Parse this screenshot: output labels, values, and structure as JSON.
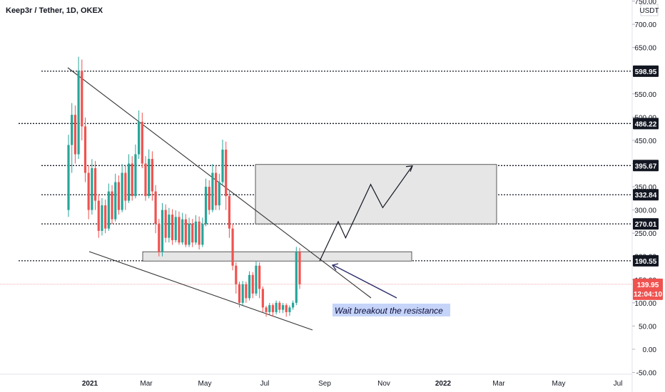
{
  "chart_data": {
    "type": "candlestick",
    "title": "Keep3r / Tether, 1D, OKEX",
    "currency": "USDT",
    "y_ticks": [
      -50,
      0,
      50,
      100,
      150,
      200,
      250,
      300,
      350,
      400,
      450,
      500,
      550,
      600,
      650,
      700,
      750
    ],
    "x_ticks": [
      "2021",
      "Mar",
      "May",
      "Jul",
      "Sep",
      "Nov",
      "2022",
      "Mar",
      "May",
      "Jul"
    ],
    "horizontal_levels": [
      598.95,
      486.22,
      395.67,
      332.84,
      270.01,
      190.55
    ],
    "current_price": {
      "value": "139.95",
      "time": "12:04:10"
    },
    "annotation": "Wait breakout the resistance",
    "colors": {
      "up": "#26a69a",
      "down": "#ef5350",
      "tag_bg": "#131722",
      "current_bg": "#ef5350",
      "note_bg": "#c5d4f8",
      "box_fill": "#e6e6e6"
    },
    "support_zone": {
      "low": 190,
      "high": 210
    },
    "target_zone": {
      "low": 270,
      "high": 398
    },
    "projection_path": [
      [
        0,
        190
      ],
      [
        0.2,
        275
      ],
      [
        0.28,
        240
      ],
      [
        0.55,
        355
      ],
      [
        0.68,
        305
      ],
      [
        1,
        395
      ]
    ],
    "candles": [
      [
        0,
        300,
        440,
        285
      ],
      [
        0,
        440,
        505,
        380
      ],
      [
        1,
        505,
        420,
        400
      ],
      [
        0,
        420,
        600,
        410
      ],
      [
        1,
        600,
        480,
        450
      ],
      [
        1,
        480,
        380,
        360
      ],
      [
        1,
        380,
        300,
        280
      ],
      [
        0,
        300,
        390,
        290
      ],
      [
        1,
        390,
        320,
        300
      ],
      [
        1,
        320,
        255,
        240
      ],
      [
        0,
        255,
        310,
        245
      ],
      [
        1,
        310,
        260,
        250
      ],
      [
        0,
        260,
        340,
        255
      ],
      [
        1,
        340,
        280,
        270
      ],
      [
        0,
        280,
        360,
        275
      ],
      [
        1,
        360,
        300,
        290
      ],
      [
        0,
        300,
        380,
        295
      ],
      [
        1,
        380,
        320,
        300
      ],
      [
        0,
        320,
        400,
        315
      ],
      [
        1,
        400,
        330,
        320
      ],
      [
        0,
        330,
        420,
        325
      ],
      [
        0,
        420,
        490,
        410
      ],
      [
        1,
        490,
        400,
        390
      ],
      [
        1,
        400,
        330,
        320
      ],
      [
        0,
        330,
        410,
        325
      ],
      [
        1,
        410,
        340,
        320
      ],
      [
        1,
        340,
        270,
        250
      ],
      [
        1,
        270,
        210,
        200
      ],
      [
        0,
        210,
        300,
        200
      ],
      [
        1,
        300,
        240,
        230
      ],
      [
        0,
        240,
        290,
        230
      ],
      [
        1,
        290,
        235,
        225
      ],
      [
        0,
        235,
        285,
        230
      ],
      [
        1,
        285,
        230,
        225
      ],
      [
        0,
        230,
        280,
        225
      ],
      [
        1,
        280,
        225,
        220
      ],
      [
        0,
        225,
        270,
        220
      ],
      [
        1,
        270,
        230,
        220
      ],
      [
        0,
        230,
        275,
        225
      ],
      [
        1,
        275,
        225,
        215
      ],
      [
        0,
        225,
        270,
        220
      ],
      [
        0,
        270,
        350,
        265
      ],
      [
        1,
        350,
        300,
        290
      ],
      [
        0,
        300,
        380,
        295
      ],
      [
        1,
        380,
        310,
        300
      ],
      [
        0,
        310,
        360,
        300
      ],
      [
        0,
        360,
        430,
        355
      ],
      [
        1,
        430,
        330,
        300
      ],
      [
        1,
        330,
        260,
        240
      ],
      [
        1,
        260,
        180,
        170
      ],
      [
        1,
        180,
        140,
        120
      ],
      [
        1,
        140,
        100,
        90
      ],
      [
        0,
        100,
        140,
        95
      ],
      [
        1,
        140,
        110,
        100
      ],
      [
        0,
        110,
        160,
        105
      ],
      [
        1,
        160,
        120,
        110
      ],
      [
        0,
        120,
        180,
        115
      ],
      [
        1,
        180,
        130,
        110
      ],
      [
        1,
        130,
        90,
        80
      ],
      [
        1,
        90,
        80,
        70
      ],
      [
        0,
        80,
        95,
        75
      ],
      [
        1,
        95,
        80,
        70
      ],
      [
        0,
        80,
        100,
        75
      ],
      [
        1,
        100,
        85,
        78
      ],
      [
        0,
        85,
        95,
        78
      ],
      [
        1,
        95,
        80,
        70
      ],
      [
        0,
        80,
        90,
        72
      ],
      [
        0,
        90,
        100,
        85
      ],
      [
        0,
        100,
        210,
        95
      ],
      [
        1,
        210,
        139.95,
        130
      ]
    ]
  }
}
